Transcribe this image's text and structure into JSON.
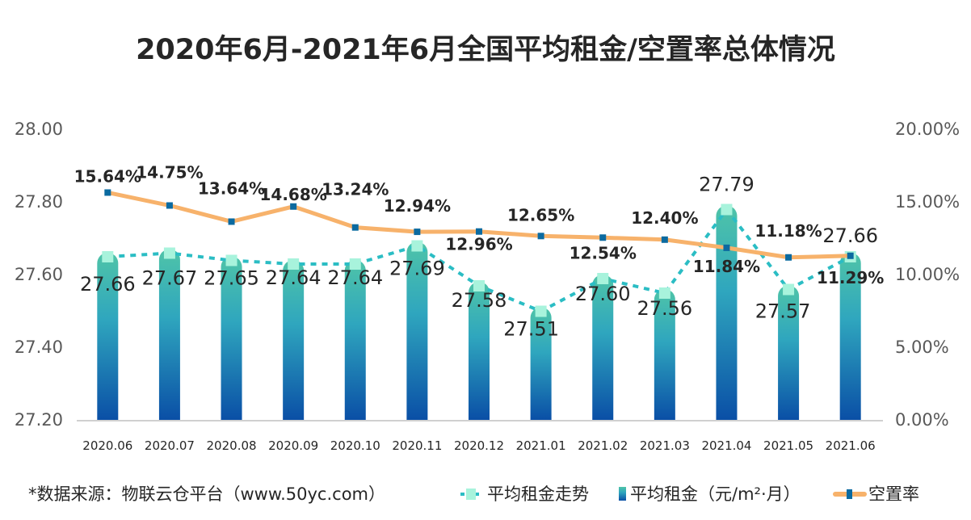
{
  "chart_data": {
    "type": "bar+line",
    "title": "2020年6月-2021年6月全国平均租金/空置率总体情况",
    "categories": [
      "2020.06",
      "2020.07",
      "2020.08",
      "2020.09",
      "2020.10",
      "2020.11",
      "2020.12",
      "2021.01",
      "2021.02",
      "2021.03",
      "2021.04",
      "2021.05",
      "2021.06"
    ],
    "series": [
      {
        "name": "平均租金（元/m²·月）",
        "type": "bar",
        "axis": "left",
        "values": [
          27.66,
          27.67,
          27.65,
          27.64,
          27.64,
          27.69,
          27.58,
          27.51,
          27.6,
          27.56,
          27.79,
          27.57,
          27.66
        ],
        "labels": [
          "27.66",
          "27.67",
          "27.65",
          "27.64",
          "27.64",
          "27.69",
          "27.58",
          "27.51",
          "27.60",
          "27.56",
          "27.79",
          "27.57",
          "27.66"
        ]
      },
      {
        "name": "平均租金走势",
        "type": "line-dashed",
        "axis": "left",
        "values": [
          27.66,
          27.67,
          27.65,
          27.64,
          27.64,
          27.69,
          27.58,
          27.51,
          27.6,
          27.56,
          27.79,
          27.57,
          27.66
        ]
      },
      {
        "name": "空置率",
        "type": "line",
        "axis": "right",
        "values": [
          15.64,
          14.75,
          13.64,
          14.68,
          13.24,
          12.94,
          12.96,
          12.65,
          12.54,
          12.4,
          11.84,
          11.18,
          11.29
        ],
        "labels": [
          "15.64%",
          "14.75%",
          "13.64%",
          "14.68%",
          "13.24%",
          "12.94%",
          "12.96%",
          "12.65%",
          "12.54%",
          "12.40%",
          "11.84%",
          "11.18%",
          "11.29%"
        ]
      }
    ],
    "left_axis": {
      "ylim": [
        27.2,
        28.0
      ],
      "ticks": [
        "27.20",
        "27.40",
        "27.60",
        "27.80",
        "28.00"
      ]
    },
    "right_axis": {
      "ylim": [
        0,
        20
      ],
      "ticks": [
        "0.00%",
        "5.00%",
        "10.00%",
        "15.00%",
        "20.00%"
      ]
    },
    "grid": false,
    "legend_position": "bottom",
    "source_note": "*数据来源：物联云仓平台（www.50yc.com）",
    "colors": {
      "bar_top": "#4fc4a8",
      "bar_mid": "#2fa6be",
      "bar_bottom": "#0a4fa6",
      "trend": "#2bbdc4",
      "trend_marker": "#a8f3dc",
      "vacancy_line": "#f7b26b",
      "vacancy_marker": "#0b6aa0"
    }
  }
}
